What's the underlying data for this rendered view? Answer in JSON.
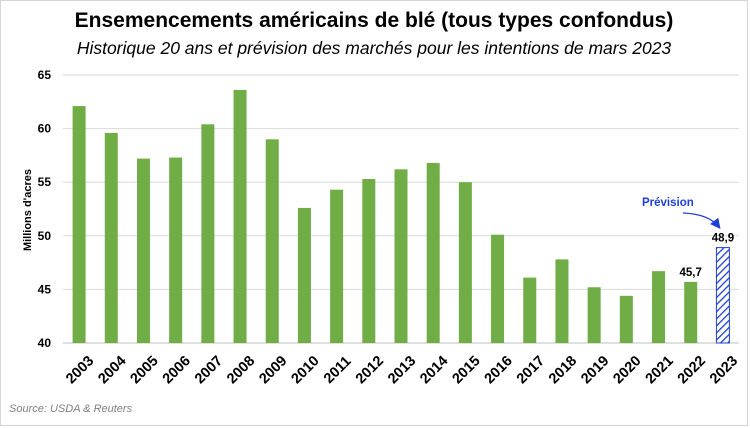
{
  "chart_data": {
    "type": "bar",
    "title": "Ensemencements américains de blé (tous types confondus)",
    "subtitle": "Historique 20 ans et prévision des marchés pour les intentions de mars 2023",
    "ylabel": "Millions d'acres",
    "xlabel": "",
    "ylim": [
      40,
      65
    ],
    "yticks": [
      40,
      45,
      50,
      55,
      60,
      65
    ],
    "grid": true,
    "categories": [
      "2003",
      "2004",
      "2005",
      "2006",
      "2007",
      "2008",
      "2009",
      "2010",
      "2011",
      "2012",
      "2013",
      "2014",
      "2015",
      "2016",
      "2017",
      "2018",
      "2019",
      "2020",
      "2021",
      "2022",
      "2023"
    ],
    "values": [
      62.1,
      59.6,
      57.2,
      57.3,
      60.4,
      63.6,
      59.0,
      52.6,
      54.3,
      55.3,
      56.2,
      56.8,
      55.0,
      50.1,
      46.1,
      47.8,
      45.2,
      44.4,
      46.7,
      45.7,
      48.9
    ],
    "data_labels": [
      {
        "category": "2022",
        "text": "45,7"
      },
      {
        "category": "2023",
        "text": "48,9"
      }
    ],
    "forecast_category": "2023",
    "annotation": "Prévision",
    "colors": {
      "bar": "#70ad47",
      "forecast": "#1f3fd6",
      "annotation": "#1f3fd6",
      "grid": "#d9d9d9"
    }
  },
  "source": "Source: USDA & Reuters"
}
